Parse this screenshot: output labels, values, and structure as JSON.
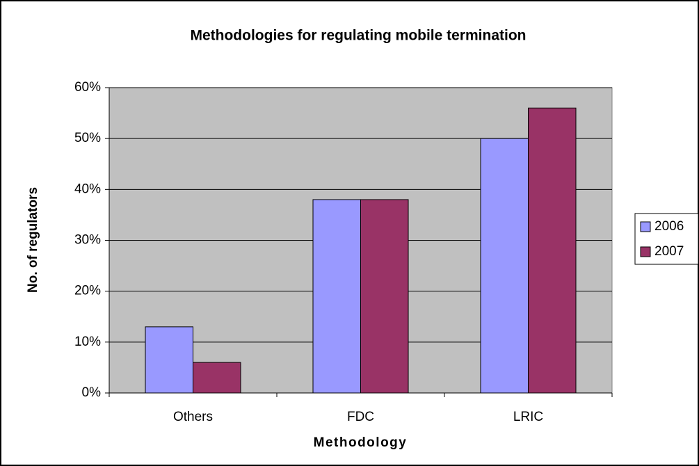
{
  "chart_data": {
    "type": "bar",
    "title": "Methodologies for regulating mobile termination",
    "x_label": "Methodology",
    "y_label": "No. of regulators",
    "categories": [
      "Others",
      "FDC",
      "LRIC"
    ],
    "series": [
      {
        "name": "2006",
        "color": "#9999ff",
        "values": [
          13,
          38,
          50
        ]
      },
      {
        "name": "2007",
        "color": "#993366",
        "values": [
          6,
          38,
          56
        ]
      }
    ],
    "ylim": [
      0,
      60
    ],
    "yticks": [
      {
        "value": 0,
        "label": "0%"
      },
      {
        "value": 10,
        "label": "10%"
      },
      {
        "value": 20,
        "label": "20%"
      },
      {
        "value": 30,
        "label": "30%"
      },
      {
        "value": 40,
        "label": "40%"
      },
      {
        "value": 50,
        "label": "50%"
      },
      {
        "value": 60,
        "label": "60%"
      }
    ],
    "grid": true,
    "legend": "right",
    "plot_background": "#c0c0c0"
  }
}
